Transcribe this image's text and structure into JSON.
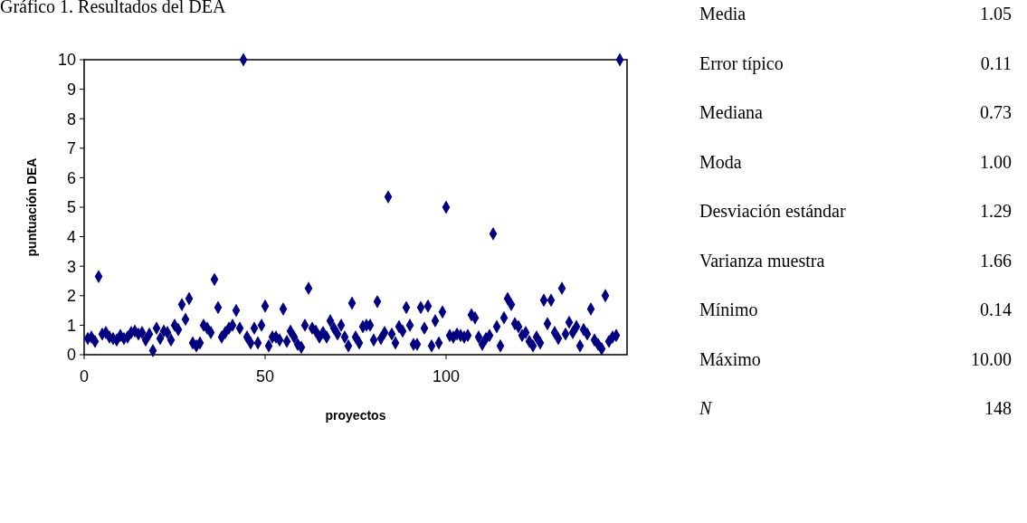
{
  "chart_data": {
    "type": "scatter",
    "title": "Gráfico 1. Resultados del DEA",
    "xlabel": "proyectos",
    "ylabel": "puntuación DEA",
    "x": [
      1,
      2,
      3,
      4,
      5,
      6,
      7,
      8,
      9,
      10,
      11,
      12,
      13,
      14,
      15,
      16,
      17,
      18,
      19,
      20,
      21,
      22,
      23,
      24,
      25,
      26,
      27,
      28,
      29,
      30,
      31,
      32,
      33,
      34,
      35,
      36,
      37,
      38,
      39,
      40,
      41,
      42,
      43,
      44,
      45,
      46,
      47,
      48,
      49,
      50,
      51,
      52,
      53,
      54,
      55,
      56,
      57,
      58,
      59,
      60,
      61,
      62,
      63,
      64,
      65,
      66,
      67,
      68,
      69,
      70,
      71,
      72,
      73,
      74,
      75,
      76,
      77,
      78,
      79,
      80,
      81,
      82,
      83,
      84,
      85,
      86,
      87,
      88,
      89,
      90,
      91,
      92,
      93,
      94,
      95,
      96,
      97,
      98,
      99,
      100,
      101,
      102,
      103,
      104,
      105,
      106,
      107,
      108,
      109,
      110,
      111,
      112,
      113,
      114,
      115,
      116,
      117,
      118,
      119,
      120,
      121,
      122,
      123,
      124,
      125,
      126,
      127,
      128,
      129,
      130,
      131,
      132,
      133,
      134,
      135,
      136,
      137,
      138,
      139,
      140,
      141,
      142,
      143,
      144,
      145,
      146,
      147,
      148
    ],
    "series": [
      {
        "color": "#000080",
        "values": [
          0.55,
          0.6,
          0.45,
          2.65,
          0.7,
          0.75,
          0.6,
          0.55,
          0.5,
          0.65,
          0.55,
          0.6,
          0.75,
          0.8,
          0.7,
          0.75,
          0.5,
          0.7,
          0.14,
          0.9,
          0.55,
          0.8,
          0.75,
          0.5,
          1.0,
          0.85,
          1.7,
          1.2,
          1.9,
          0.4,
          0.3,
          0.4,
          1.0,
          0.9,
          0.75,
          2.55,
          1.6,
          0.6,
          0.75,
          0.9,
          1.0,
          1.5,
          0.9,
          10,
          0.6,
          0.4,
          0.9,
          0.4,
          1.0,
          1.65,
          0.3,
          0.6,
          0.6,
          0.5,
          1.55,
          0.45,
          0.8,
          0.6,
          0.35,
          0.25,
          1.0,
          2.25,
          0.9,
          0.8,
          0.6,
          0.75,
          0.6,
          1.15,
          0.9,
          0.7,
          1.0,
          0.6,
          0.3,
          1.75,
          0.6,
          0.4,
          0.95,
          1.0,
          1.0,
          0.5,
          1.8,
          0.55,
          0.75,
          5.35,
          0.7,
          0.4,
          0.95,
          0.8,
          1.6,
          1.0,
          0.35,
          0.35,
          1.6,
          0.9,
          1.65,
          0.3,
          1.15,
          0.4,
          1.45,
          5.0,
          0.65,
          0.6,
          0.7,
          0.65,
          0.6,
          0.65,
          1.35,
          1.25,
          0.6,
          0.35,
          0.55,
          0.65,
          4.1,
          0.95,
          0.3,
          1.25,
          1.9,
          1.7,
          1.05,
          0.95,
          0.65,
          0.75,
          0.45,
          0.3,
          0.6,
          0.4,
          1.85,
          1.05,
          1.85,
          0.75,
          0.55,
          2.25,
          0.7,
          1.1,
          0.75,
          0.95,
          0.3,
          0.85,
          0.7,
          1.55,
          0.5,
          0.35,
          0.2,
          2.0,
          0.45,
          0.6,
          0.65,
          10
        ]
      }
    ],
    "xlim": [
      0,
      150
    ],
    "xticks": [
      0,
      50,
      100
    ],
    "ylim": [
      0,
      10
    ],
    "yticks": [
      0,
      1,
      2,
      3,
      4,
      5,
      6,
      7,
      8,
      9,
      10
    ],
    "marker": "diamond",
    "grid": false,
    "annotations": [
      "Media",
      "1.05",
      "Error típico",
      "0.11",
      "Mediana",
      "0.73",
      "Moda",
      "1.00",
      "Desviación estándar",
      "1.29",
      "Varianza muestra",
      "1.66",
      "Mínimo",
      "0.14",
      "Máximo",
      "10.00",
      "N",
      "148"
    ]
  }
}
